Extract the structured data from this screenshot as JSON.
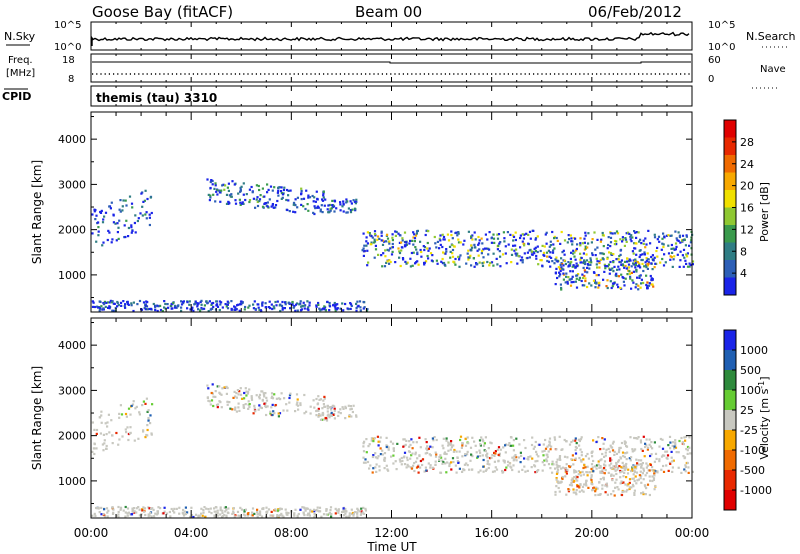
{
  "header": {
    "station": "Goose Bay (fitACF)",
    "beam": "Beam 00",
    "date": "06/Feb/2012"
  },
  "panels": {
    "nsky": {
      "left_label": "N.Sky",
      "right_label": "N.Search",
      "left_ticks": [
        "10^5",
        "10^0"
      ],
      "right_ticks": [
        "10^5",
        "10^0"
      ]
    },
    "freq": {
      "left_label_1": "Freq.",
      "left_label_2": "[MHz]",
      "right_label": "Nave",
      "left_ticks": [
        "18",
        "8"
      ],
      "right_ticks": [
        "60",
        "0"
      ]
    },
    "cpid": {
      "label": "CPID",
      "value": "themis (tau) 3310"
    }
  },
  "chart_data": [
    {
      "type": "heatmap",
      "name": "power",
      "xlabel": "Time UT",
      "ylabel": "Slant Range [km]",
      "xlim": [
        0,
        24
      ],
      "ylim": [
        180,
        4600
      ],
      "x_tick_labels": [
        "00:00",
        "04:00",
        "08:00",
        "12:00",
        "16:00",
        "20:00",
        "00:00"
      ],
      "y_tick_labels": [
        "1000",
        "2000",
        "3000",
        "4000"
      ],
      "y_ticks": [
        1000,
        2000,
        3000,
        4000
      ],
      "colorbar": {
        "label": "Power [dB]",
        "range": [
          0,
          32
        ],
        "tick_labels": [
          "4",
          "8",
          "12",
          "16",
          "20",
          "24",
          "28"
        ],
        "ticks": [
          4,
          8,
          12,
          16,
          20,
          24,
          28
        ],
        "colors": [
          "#1a24e8",
          "#2d5fb6",
          "#2f7d84",
          "#3a9a4c",
          "#8fc832",
          "#f0e000",
          "#f7a800",
          "#f06a00",
          "#e82800",
          "#e00000"
        ]
      },
      "bands": [
        {
          "t0": 0.0,
          "t1": 2.4,
          "r0": 1800,
          "r1": 2700,
          "intensity": 0.25
        },
        {
          "t0": 4.6,
          "t1": 9.4,
          "r0": 2500,
          "r1": 3050,
          "intensity": 0.3
        },
        {
          "t0": 9.4,
          "t1": 10.6,
          "r0": 2400,
          "r1": 2700,
          "intensity": 0.3
        },
        {
          "t0": 10.8,
          "t1": 24.0,
          "r0": 1200,
          "r1": 2000,
          "intensity": 0.55
        },
        {
          "t0": 18.5,
          "t1": 22.5,
          "r0": 700,
          "r1": 1400,
          "intensity": 0.7
        },
        {
          "t0": 0.0,
          "t1": 11.0,
          "r0": 200,
          "r1": 450,
          "intensity": 0.2
        }
      ]
    },
    {
      "type": "heatmap",
      "name": "velocity",
      "xlabel": "Time UT",
      "ylabel": "Slant Range [km]",
      "xlim": [
        0,
        24
      ],
      "ylim": [
        180,
        4600
      ],
      "x_tick_labels": [
        "00:00",
        "04:00",
        "08:00",
        "12:00",
        "16:00",
        "20:00",
        "00:00"
      ],
      "y_tick_labels": [
        "1000",
        "2000",
        "3000",
        "4000"
      ],
      "y_ticks": [
        1000,
        2000,
        3000,
        4000
      ],
      "colorbar": {
        "label": "Velocity [m s^-1]",
        "tick_labels": [
          "1000",
          "500",
          "100",
          "25",
          "-25",
          "-100",
          "-500",
          "-1000"
        ],
        "colors": [
          "#1a24e8",
          "#1f5fb2",
          "#2e8a3c",
          "#66cc33",
          "#c8c8c0",
          "#f7a800",
          "#f06a00",
          "#e82800",
          "#e00000"
        ]
      },
      "bands": [
        {
          "t0": 0.0,
          "t1": 2.4,
          "r0": 1800,
          "r1": 2700,
          "intensity": 0.25
        },
        {
          "t0": 4.6,
          "t1": 9.4,
          "r0": 2500,
          "r1": 3050,
          "intensity": 0.3
        },
        {
          "t0": 9.4,
          "t1": 10.6,
          "r0": 2400,
          "r1": 2700,
          "intensity": 0.3
        },
        {
          "t0": 10.8,
          "t1": 24.0,
          "r0": 1200,
          "r1": 2000,
          "intensity": 0.55
        },
        {
          "t0": 18.5,
          "t1": 22.5,
          "r0": 700,
          "r1": 1400,
          "intensity": 0.7
        },
        {
          "t0": 0.0,
          "t1": 11.0,
          "r0": 200,
          "r1": 450,
          "intensity": 0.2
        }
      ]
    }
  ]
}
